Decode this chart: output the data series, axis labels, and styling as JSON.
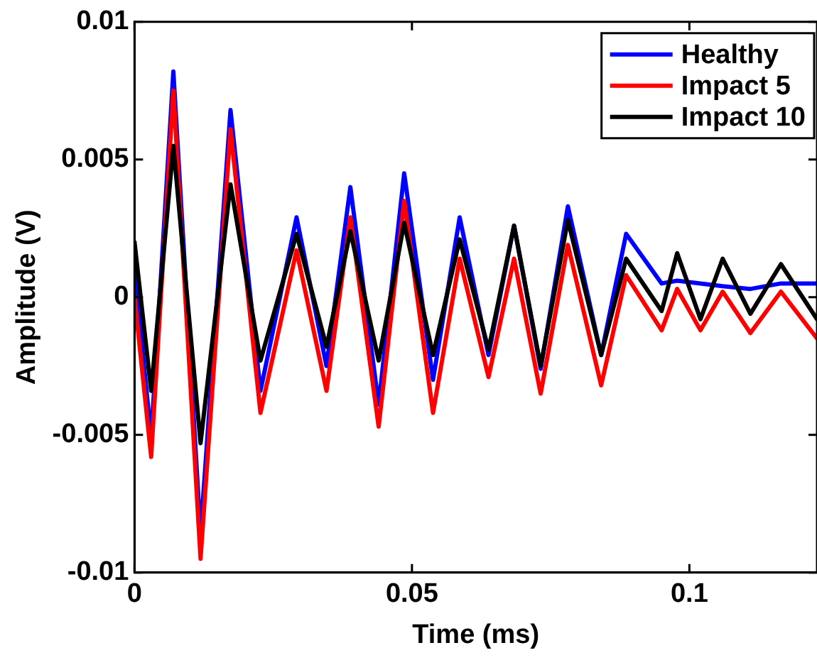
{
  "chart_data": {
    "type": "line",
    "xlabel": "Time (ms)",
    "ylabel": "Amplitude (V)",
    "x": [
      0,
      0.003,
      0.007,
      0.0119,
      0.0173,
      0.0227,
      0.0292,
      0.0346,
      0.0389,
      0.044,
      0.0486,
      0.0538,
      0.0586,
      0.0638,
      0.0684,
      0.0732,
      0.0781,
      0.0841,
      0.0886,
      0.095,
      0.0978,
      0.102,
      0.106,
      0.111,
      0.1165,
      0.123
    ],
    "series": [
      {
        "name": "Healthy",
        "color": "#0000ff",
        "values": [
          0.001,
          -0.0051,
          0.0082,
          -0.0086,
          0.0068,
          -0.0034,
          0.0029,
          -0.0025,
          0.004,
          -0.0039,
          0.0045,
          -0.003,
          0.0029,
          -0.0021,
          0.0026,
          -0.0026,
          0.0033,
          -0.0021,
          0.0023,
          0.0005,
          0.0006,
          0.0005,
          0.0004,
          0.0003,
          0.0005,
          0.0005
        ]
      },
      {
        "name": "Impact 5",
        "color": "#ff0000",
        "values": [
          0,
          -0.0058,
          0.0075,
          -0.0095,
          0.0061,
          -0.0042,
          0.0017,
          -0.0034,
          0.0029,
          -0.0047,
          0.0035,
          -0.0042,
          0.0014,
          -0.0029,
          0.0014,
          -0.0035,
          0.0019,
          -0.0032,
          0.0008,
          -0.0012,
          0.0003,
          -0.0012,
          0.0002,
          -0.0013,
          0.0002,
          -0.0015
        ]
      },
      {
        "name": "Impact 10",
        "color": "#000000",
        "values": [
          0.002,
          -0.0034,
          0.0055,
          -0.0053,
          0.0041,
          -0.0023,
          0.0023,
          -0.0018,
          0.0024,
          -0.0023,
          0.0027,
          -0.0021,
          0.0021,
          -0.0019,
          0.0026,
          -0.0025,
          0.0028,
          -0.0021,
          0.0014,
          -0.0005,
          0.0016,
          -0.0008,
          0.0014,
          -0.0006,
          0.0012,
          -0.0008
        ]
      }
    ],
    "xlim": [
      0,
      0.123
    ],
    "xticks": [
      0,
      0.05,
      0.1
    ],
    "ylim": [
      -0.01,
      0.01
    ],
    "yticks": [
      -0.01,
      -0.005,
      0,
      0.005,
      0.01
    ],
    "grid": false,
    "legend": "top right",
    "marker": "none",
    "line_style": "solid"
  }
}
